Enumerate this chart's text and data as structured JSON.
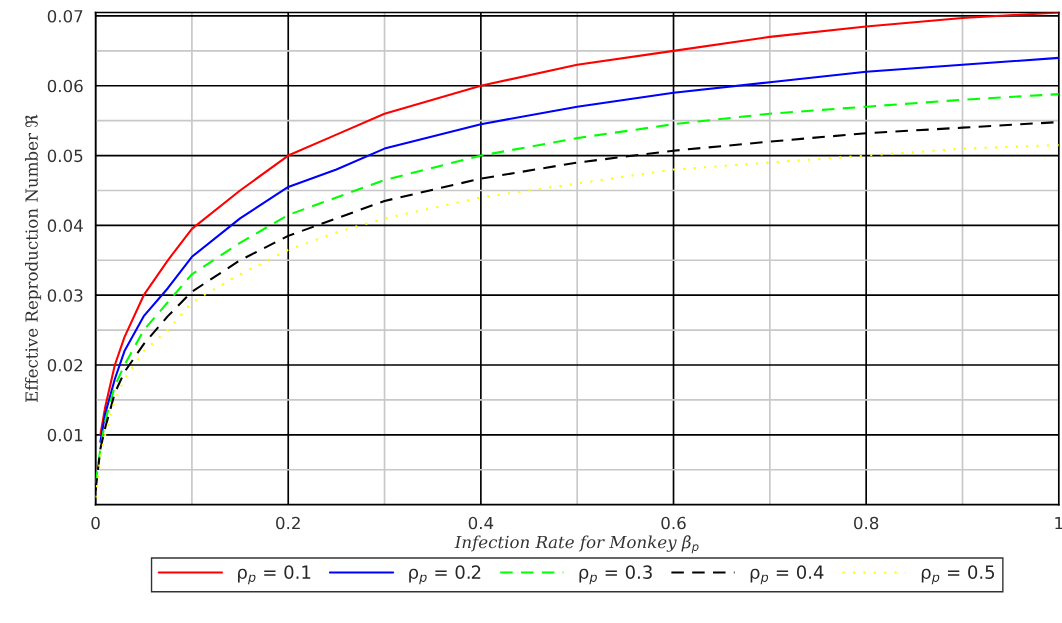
{
  "chart_data": {
    "type": "line",
    "xlabel": "Infection Rate for Monkey β$_{p}$",
    "ylabel": "Effective Reproduction Number ℜ",
    "x": [
      0,
      0.005,
      0.01,
      0.02,
      0.03,
      0.05,
      0.075,
      0.1,
      0.15,
      0.2,
      0.25,
      0.3,
      0.4,
      0.5,
      0.6,
      0.7,
      0.8,
      0.9,
      1.0
    ],
    "series": [
      {
        "name": "ρ$_{p}$ = 0.1",
        "color": "#ff0000",
        "line_style": "solid",
        "values": [
          null,
          0.01,
          0.014,
          0.02,
          0.024,
          0.03,
          0.035,
          0.0395,
          0.045,
          0.05,
          0.053,
          0.056,
          0.06,
          0.063,
          0.065,
          0.067,
          0.0685,
          0.0697,
          0.0705
        ]
      },
      {
        "name": "ρ$_{p}$ = 0.2",
        "color": "#0000ff",
        "line_style": "solid",
        "values": [
          null,
          0.009,
          0.013,
          0.018,
          0.022,
          0.027,
          0.031,
          0.0355,
          0.041,
          0.0455,
          0.048,
          0.051,
          0.0545,
          0.057,
          0.059,
          0.0605,
          0.062,
          0.063,
          0.064
        ]
      },
      {
        "name": "ρ$_{p}$ = 0.3",
        "color": "#00ff00",
        "line_style": "dashed",
        "values": [
          0.003,
          0.008,
          0.012,
          0.017,
          0.02,
          0.025,
          0.029,
          0.033,
          0.0375,
          0.0415,
          0.044,
          0.0465,
          0.05,
          0.0525,
          0.0545,
          0.056,
          0.057,
          0.058,
          0.0588
        ]
      },
      {
        "name": "ρ$_{p}$ = 0.4",
        "color": "#000000",
        "line_style": "dashed",
        "values": [
          0.002,
          0.008,
          0.011,
          0.016,
          0.019,
          0.023,
          0.027,
          0.0305,
          0.035,
          0.0385,
          0.041,
          0.0435,
          0.0467,
          0.049,
          0.0507,
          0.052,
          0.0532,
          0.054,
          0.0548
        ]
      },
      {
        "name": "ρ$_{p}$ = 0.5",
        "color": "#ffff00",
        "line_style": "dotted",
        "values": [
          0.001,
          0.007,
          0.01,
          0.015,
          0.018,
          0.022,
          0.025,
          0.029,
          0.033,
          0.0365,
          0.039,
          0.041,
          0.044,
          0.046,
          0.048,
          0.049,
          0.05,
          0.051,
          0.0515
        ]
      }
    ],
    "xlim": [
      0,
      1
    ],
    "ylim": [
      0,
      0.0705
    ],
    "xticks": [
      0,
      {
        "value": 0.1,
        "label": null
      },
      0.2,
      {
        "value": 0.3,
        "label": null
      },
      0.4,
      {
        "value": 0.5,
        "label": null
      },
      0.6,
      {
        "value": 0.7,
        "label": null
      },
      0.8,
      {
        "value": 0.9,
        "label": null
      },
      1
    ],
    "yticks": [
      {
        "value": 0.005,
        "label": null
      },
      0.01,
      {
        "value": 0.015,
        "label": null
      },
      0.02,
      {
        "value": 0.025,
        "label": null
      },
      0.03,
      {
        "value": 0.035,
        "label": null
      },
      0.04,
      {
        "value": 0.045,
        "label": null
      },
      0.05,
      {
        "value": 0.055,
        "label": null
      },
      0.06,
      {
        "value": 0.065,
        "label": null
      },
      0.07
    ],
    "grid": true,
    "legend": "bottom"
  }
}
